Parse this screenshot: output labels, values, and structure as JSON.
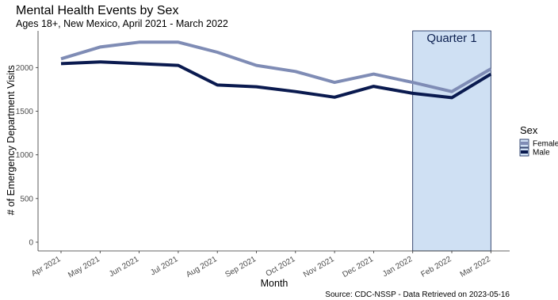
{
  "chart_data": {
    "type": "line",
    "title": "Mental Health Events by Sex",
    "subtitle": "Ages 18+, New Mexico, April 2021 - March 2022",
    "xlabel": "Month",
    "ylabel": "# of Emergency Department Visits",
    "categories": [
      "Apr 2021",
      "May 2021",
      "Jun 2021",
      "Jul 2021",
      "Aug 2021",
      "Sep 2021",
      "Oct 2021",
      "Nov 2021",
      "Dec 2021",
      "Jan 2022",
      "Feb 2022",
      "Mar 2022"
    ],
    "ylim": [
      -100,
      2420
    ],
    "yticks": [
      0,
      500,
      1000,
      1500,
      2000
    ],
    "grid": false,
    "series": [
      {
        "name": "Female",
        "color": "#7f8cb5",
        "values": [
          2100,
          2235,
          2290,
          2290,
          2175,
          2025,
          1955,
          1830,
          1925,
          1830,
          1725,
          1985
        ]
      },
      {
        "name": "Male",
        "color": "#0a1a4f",
        "values": [
          2045,
          2065,
          2045,
          2025,
          1800,
          1780,
          1725,
          1660,
          1785,
          1705,
          1655,
          1925
        ]
      }
    ],
    "highlight": {
      "from": "Jan 2022",
      "to": "Mar 2022",
      "label": "Quarter 1",
      "fill": "#cfe0f3",
      "stroke": "#0b1f4f"
    },
    "legend": {
      "title": "Sex",
      "position": "right"
    },
    "caption": "Source: CDC-NSSP - Data Retrieved on 2023-05-16"
  }
}
